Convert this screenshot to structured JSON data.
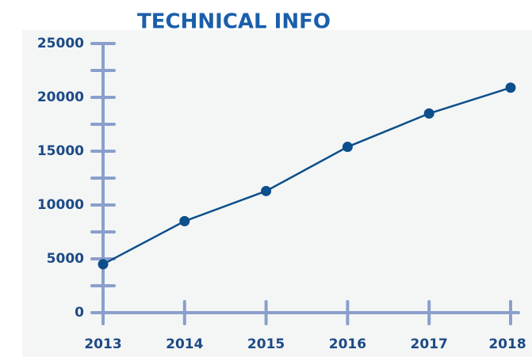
{
  "chart_data": {
    "type": "line",
    "title": "TECHNICAL INFO",
    "categories": [
      "2013",
      "2014",
      "2015",
      "2016",
      "2017",
      "2018"
    ],
    "series": [
      {
        "name": "Technical info",
        "color": "#0d4f8b",
        "values": [
          4500,
          8500,
          11300,
          15400,
          18500,
          20900
        ]
      }
    ],
    "ylim": [
      0,
      25000
    ],
    "yticks": [
      0,
      5000,
      10000,
      15000,
      20000,
      25000
    ],
    "minor_yticks": [
      2500,
      7500,
      12500,
      17500,
      22500
    ]
  }
}
